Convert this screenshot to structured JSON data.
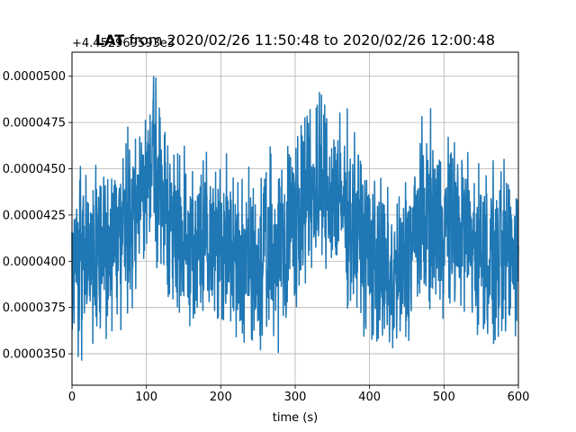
{
  "chart_data": {
    "type": "line",
    "title": {
      "bold": "LAT",
      "rest": " from 2020/02/26 11:50:48 to 2020/02/26 12:00:48"
    },
    "xlabel": "time (s)",
    "ylabel": "",
    "offset_label": "+4.452969593e3",
    "xlim": [
      0,
      600
    ],
    "ylim": [
      3.33e-05,
      5.13e-05
    ],
    "grid": true,
    "xticks": [
      {
        "value": 0,
        "label": "0"
      },
      {
        "value": 100,
        "label": "100"
      },
      {
        "value": 200,
        "label": "200"
      },
      {
        "value": 300,
        "label": "300"
      },
      {
        "value": 400,
        "label": "400"
      },
      {
        "value": 500,
        "label": "500"
      },
      {
        "value": 600,
        "label": "600"
      }
    ],
    "yticks": [
      {
        "value": 3.5e-05,
        "label": "0.0000350"
      },
      {
        "value": 3.75e-05,
        "label": "0.0000375"
      },
      {
        "value": 4e-05,
        "label": "0.0000400"
      },
      {
        "value": 4.25e-05,
        "label": "0.0000425"
      },
      {
        "value": 4.5e-05,
        "label": "0.0000450"
      },
      {
        "value": 4.75e-05,
        "label": "0.0000475"
      },
      {
        "value": 5e-05,
        "label": "0.0000500"
      }
    ],
    "series": [
      {
        "color": "#1f77b4",
        "x": [
          0,
          10,
          20,
          30,
          40,
          50,
          60,
          70,
          80,
          90,
          100,
          110,
          120,
          130,
          140,
          150,
          160,
          170,
          180,
          190,
          200,
          210,
          220,
          230,
          240,
          250,
          260,
          270,
          280,
          290,
          300,
          310,
          320,
          330,
          340,
          350,
          360,
          370,
          380,
          390,
          400,
          410,
          420,
          430,
          440,
          450,
          460,
          470,
          480,
          490,
          500,
          510,
          520,
          530,
          540,
          550,
          560,
          570,
          580,
          590,
          600
        ],
        "y": [
          4.05e-05,
          4.1e-05,
          4.05e-05,
          4.02e-05,
          4.12e-05,
          4.1e-05,
          4.08e-05,
          4.2e-05,
          4.25e-05,
          4.4e-05,
          4.45e-05,
          4.55e-05,
          4.4e-05,
          4.25e-05,
          4.18e-05,
          4.15e-05,
          4.12e-05,
          4.1e-05,
          4.12e-05,
          4.08e-05,
          4.1e-05,
          4.08e-05,
          4.02e-05,
          3.98e-05,
          3.95e-05,
          3.95e-05,
          4.02e-05,
          4.05e-05,
          4.1e-05,
          4.18e-05,
          4.25e-05,
          4.3e-05,
          4.35e-05,
          4.4e-05,
          4.38e-05,
          4.36e-05,
          4.32e-05,
          4.25e-05,
          4.2e-05,
          4.12e-05,
          4.05e-05,
          3.98e-05,
          3.92e-05,
          3.88e-05,
          3.92e-05,
          4.02e-05,
          4.15e-05,
          4.22e-05,
          4.25e-05,
          4.22e-05,
          4.2e-05,
          4.18e-05,
          4.18e-05,
          4.15e-05,
          4.1e-05,
          4.05e-05,
          4.02e-05,
          3.98e-05,
          4.02e-05,
          4.05e-05,
          4.08e-05
        ],
        "noise_amplitude": 2.2e-06
      }
    ]
  }
}
